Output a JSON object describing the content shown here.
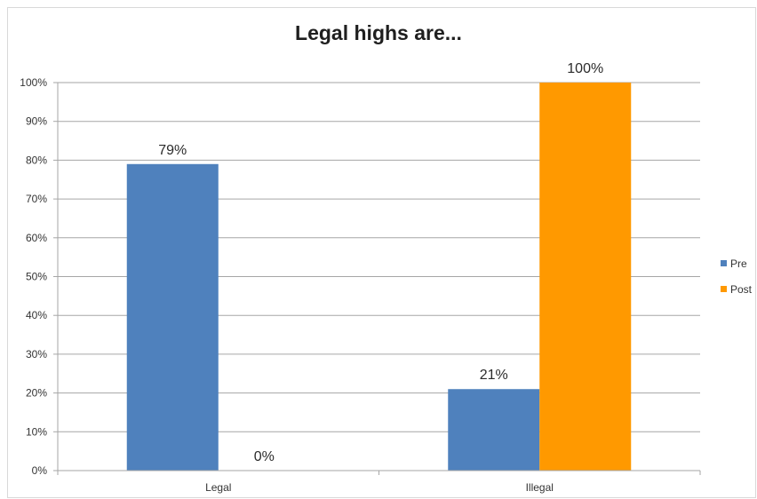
{
  "chart_data": {
    "type": "bar",
    "title": "Legal highs are...",
    "categories": [
      "Legal",
      "Illegal"
    ],
    "series": [
      {
        "name": "Pre",
        "values": [
          79,
          21
        ],
        "labels": [
          "79%",
          "21%"
        ],
        "color": "#4f81bd"
      },
      {
        "name": "Post",
        "values": [
          0,
          100
        ],
        "labels": [
          "0%",
          "100%"
        ],
        "color": "#ff9900"
      }
    ],
    "ylim": [
      0,
      100
    ],
    "yticks": [
      {
        "value": 0,
        "label": "0%"
      },
      {
        "value": 10,
        "label": "10%"
      },
      {
        "value": 20,
        "label": "20%"
      },
      {
        "value": 30,
        "label": "30%"
      },
      {
        "value": 40,
        "label": "40%"
      },
      {
        "value": 50,
        "label": "50%"
      },
      {
        "value": 60,
        "label": "60%"
      },
      {
        "value": 70,
        "label": "70%"
      },
      {
        "value": 80,
        "label": "80%"
      },
      {
        "value": 90,
        "label": "90%"
      },
      {
        "value": 100,
        "label": "100%"
      }
    ],
    "xlabel": "",
    "ylabel": "",
    "grid": true,
    "legend_position": "right"
  }
}
